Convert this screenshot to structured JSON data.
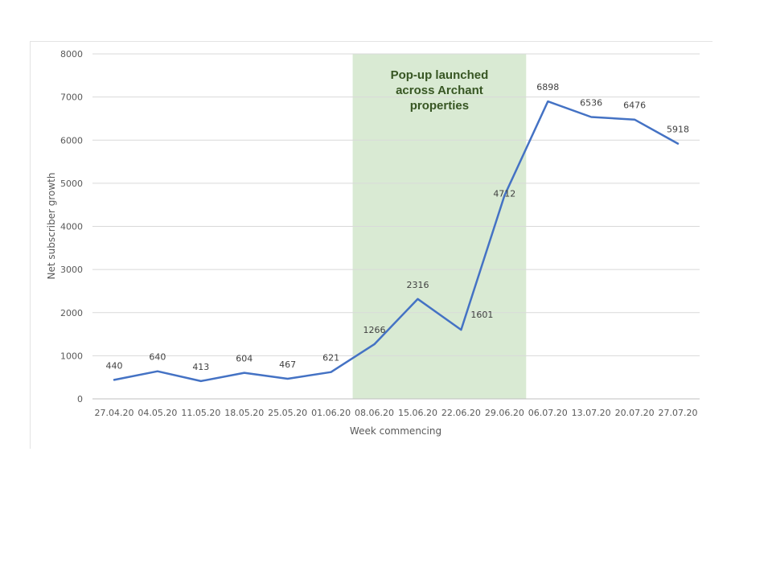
{
  "chart_data": {
    "type": "line",
    "x": [
      "27.04.20",
      "04.05.20",
      "11.05.20",
      "18.05.20",
      "25.05.20",
      "01.06.20",
      "08.06.20",
      "15.06.20",
      "22.06.20",
      "29.06.20",
      "06.07.20",
      "13.07.20",
      "20.07.20",
      "27.07.20"
    ],
    "series": [
      {
        "values": [
          440,
          640,
          413,
          604,
          467,
          621,
          1266,
          2316,
          1601,
          4712,
          6898,
          6536,
          6476,
          5918
        ]
      }
    ],
    "data_labels": [
      "440",
      "640",
      "413",
      "604",
      "467",
      "621",
      "1266",
      "2316",
      "1601",
      "4712",
      "6898",
      "6536",
      "6476",
      "5918"
    ],
    "ylabel": "Net subscriber growth",
    "xlabel": "Week commencing",
    "ylim": [
      0,
      8000
    ],
    "yticks": [
      "0",
      "1000",
      "2000",
      "3000",
      "4000",
      "5000",
      "6000",
      "7000",
      "8000"
    ],
    "grid": true,
    "line_color": "#4472c4",
    "highlight": {
      "from": "08.06.20",
      "to": "29.06.20",
      "color": "#d9ead3",
      "text_lines": [
        "Pop-up launched",
        "across Archant",
        "properties"
      ],
      "text_color": "#375623"
    }
  }
}
